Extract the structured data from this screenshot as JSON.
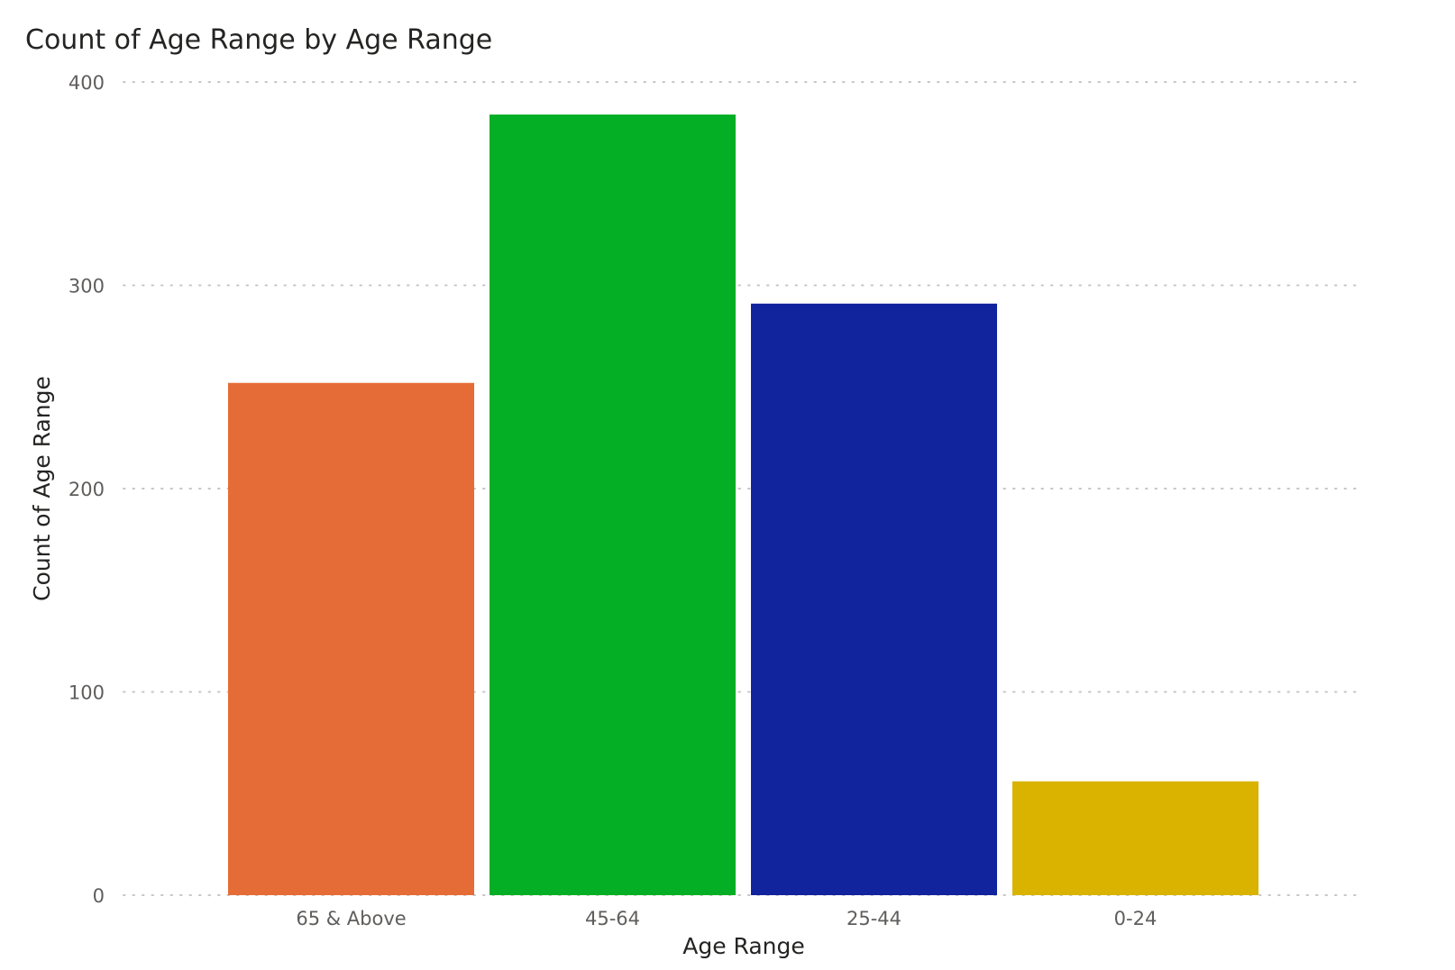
{
  "chart_data": {
    "type": "bar",
    "title": "Count of Age Range by Age Range",
    "xlabel": "Age Range",
    "ylabel": "Count of Age Range",
    "categories": [
      "65 & Above",
      "45-64",
      "25-44",
      "0-24"
    ],
    "values": [
      252,
      384,
      291,
      56
    ],
    "colors": [
      "#E66C37",
      "#04AE25",
      "#12239E",
      "#D9B300"
    ],
    "ylim": [
      0,
      400
    ],
    "yticks": [
      0,
      100,
      200,
      300,
      400
    ],
    "grid": true,
    "legend": "none"
  }
}
